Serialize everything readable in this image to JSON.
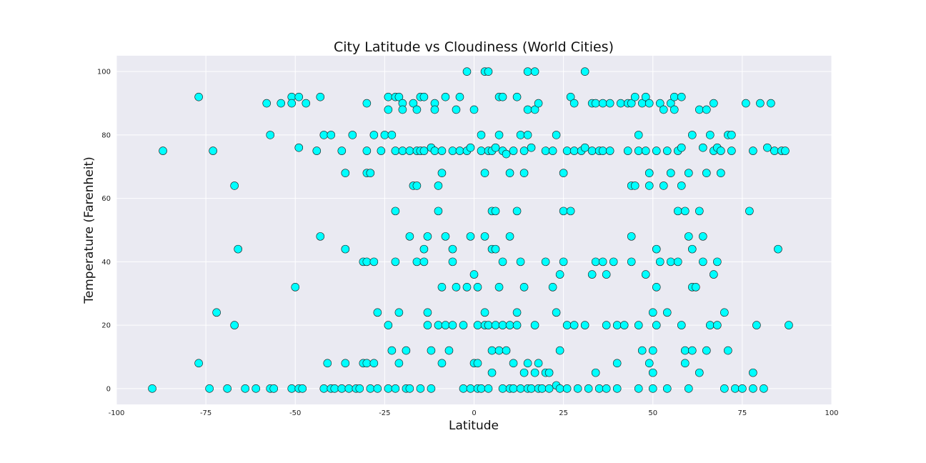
{
  "chart_data": {
    "type": "scatter",
    "title": "City Latitude vs Cloudiness (World Cities)",
    "xlabel": "Latitude",
    "ylabel": "Temperature (Farenheit)",
    "xlim": [
      -100,
      100
    ],
    "ylim": [
      -5,
      105
    ],
    "xticks": [
      -100,
      -75,
      -50,
      -25,
      0,
      25,
      50,
      75,
      100
    ],
    "yticks": [
      0,
      20,
      40,
      60,
      80,
      100
    ],
    "grid": true,
    "colors": {
      "background": "#eaeaf2",
      "grid": "#ffffff",
      "marker_fill": "#00ffff",
      "marker_edge": "#1a1a1a"
    },
    "points": [
      [
        -90,
        0
      ],
      [
        -87,
        75
      ],
      [
        -77,
        92
      ],
      [
        -77,
        8
      ],
      [
        -74,
        0
      ],
      [
        -73,
        75
      ],
      [
        -72,
        24
      ],
      [
        -69,
        0
      ],
      [
        -67,
        64
      ],
      [
        -67,
        20
      ],
      [
        -66,
        44
      ],
      [
        -64,
        0
      ],
      [
        -61,
        0
      ],
      [
        -58,
        90
      ],
      [
        -57,
        80
      ],
      [
        -57,
        0
      ],
      [
        -56,
        0
      ],
      [
        -54,
        90
      ],
      [
        -51,
        92
      ],
      [
        -51,
        90
      ],
      [
        -51,
        0
      ],
      [
        -50,
        32
      ],
      [
        -49,
        92
      ],
      [
        -49,
        76
      ],
      [
        -49,
        0
      ],
      [
        -48,
        0
      ],
      [
        -47,
        90
      ],
      [
        -44,
        75
      ],
      [
        -43,
        92
      ],
      [
        -43,
        48
      ],
      [
        -42,
        80
      ],
      [
        -42,
        0
      ],
      [
        -41,
        8
      ],
      [
        -40,
        80
      ],
      [
        -40,
        0
      ],
      [
        -39,
        0
      ],
      [
        -37,
        75
      ],
      [
        -37,
        0
      ],
      [
        -36,
        68
      ],
      [
        -36,
        44
      ],
      [
        -36,
        8
      ],
      [
        -35,
        0
      ],
      [
        -34,
        80
      ],
      [
        -33,
        0
      ],
      [
        -32,
        0
      ],
      [
        -31,
        40
      ],
      [
        -31,
        8
      ],
      [
        -30,
        90
      ],
      [
        -30,
        75
      ],
      [
        -30,
        68
      ],
      [
        -30,
        40
      ],
      [
        -30,
        8
      ],
      [
        -29,
        0
      ],
      [
        -29,
        68
      ],
      [
        -28,
        80
      ],
      [
        -28,
        8
      ],
      [
        -28,
        40
      ],
      [
        -27,
        24
      ],
      [
        -27,
        0
      ],
      [
        -26,
        75
      ],
      [
        -25,
        80
      ],
      [
        -24,
        0
      ],
      [
        -24,
        20
      ],
      [
        -24,
        88
      ],
      [
        -24,
        92
      ],
      [
        -23,
        80
      ],
      [
        -23,
        12
      ],
      [
        -22,
        92
      ],
      [
        -22,
        56
      ],
      [
        -22,
        75
      ],
      [
        -22,
        40
      ],
      [
        -22,
        0
      ],
      [
        -21,
        92
      ],
      [
        -21,
        24
      ],
      [
        -21,
        8
      ],
      [
        -20,
        90
      ],
      [
        -20,
        88
      ],
      [
        -20,
        75
      ],
      [
        -19,
        12
      ],
      [
        -19,
        0
      ],
      [
        -18,
        48
      ],
      [
        -18,
        0
      ],
      [
        -18,
        75
      ],
      [
        -17,
        90
      ],
      [
        -17,
        64
      ],
      [
        -16,
        75
      ],
      [
        -16,
        64
      ],
      [
        -16,
        40
      ],
      [
        -16,
        88
      ],
      [
        -15,
        92
      ],
      [
        -15,
        75
      ],
      [
        -15,
        0
      ],
      [
        -14,
        92
      ],
      [
        -14,
        44
      ],
      [
        -14,
        75
      ],
      [
        -14,
        40
      ],
      [
        -13,
        48
      ],
      [
        -13,
        24
      ],
      [
        -13,
        20
      ],
      [
        -12,
        76
      ],
      [
        -12,
        12
      ],
      [
        -12,
        0
      ],
      [
        -11,
        75
      ],
      [
        -11,
        90
      ],
      [
        -11,
        88
      ],
      [
        -10,
        56
      ],
      [
        -10,
        64
      ],
      [
        -10,
        20
      ],
      [
        -9,
        68
      ],
      [
        -9,
        8
      ],
      [
        -9,
        75
      ],
      [
        -9,
        32
      ],
      [
        -8,
        92
      ],
      [
        -8,
        48
      ],
      [
        -8,
        20
      ],
      [
        -7,
        12
      ],
      [
        -6,
        75
      ],
      [
        -6,
        40
      ],
      [
        -6,
        44
      ],
      [
        -6,
        20
      ],
      [
        -5,
        32
      ],
      [
        -5,
        88
      ],
      [
        -4,
        92
      ],
      [
        -4,
        75
      ],
      [
        -3,
        20
      ],
      [
        -3,
        0
      ],
      [
        -2,
        100
      ],
      [
        -2,
        75
      ],
      [
        -2,
        32
      ],
      [
        -1,
        76
      ],
      [
        -1,
        48
      ],
      [
        -1,
        0
      ],
      [
        0,
        36
      ],
      [
        0,
        8
      ],
      [
        0,
        88
      ],
      [
        1,
        20
      ],
      [
        1,
        0
      ],
      [
        1,
        8
      ],
      [
        1,
        32
      ],
      [
        2,
        80
      ],
      [
        2,
        75
      ],
      [
        2,
        0
      ],
      [
        3,
        100
      ],
      [
        3,
        48
      ],
      [
        3,
        20
      ],
      [
        3,
        68
      ],
      [
        3,
        24
      ],
      [
        4,
        0
      ],
      [
        4,
        75
      ],
      [
        4,
        100
      ],
      [
        4,
        20
      ],
      [
        5,
        56
      ],
      [
        5,
        75
      ],
      [
        5,
        44
      ],
      [
        5,
        12
      ],
      [
        5,
        5
      ],
      [
        6,
        76
      ],
      [
        6,
        56
      ],
      [
        6,
        44
      ],
      [
        6,
        20
      ],
      [
        7,
        92
      ],
      [
        7,
        80
      ],
      [
        7,
        32
      ],
      [
        7,
        12
      ],
      [
        8,
        75
      ],
      [
        8,
        40
      ],
      [
        8,
        20
      ],
      [
        8,
        0
      ],
      [
        8,
        92
      ],
      [
        9,
        12
      ],
      [
        9,
        74
      ],
      [
        10,
        48
      ],
      [
        10,
        0
      ],
      [
        10,
        20
      ],
      [
        10,
        68
      ],
      [
        11,
        75
      ],
      [
        11,
        8
      ],
      [
        11,
        0
      ],
      [
        12,
        24
      ],
      [
        12,
        92
      ],
      [
        12,
        56
      ],
      [
        12,
        20
      ],
      [
        13,
        80
      ],
      [
        13,
        40
      ],
      [
        13,
        0
      ],
      [
        14,
        75
      ],
      [
        14,
        68
      ],
      [
        14,
        32
      ],
      [
        14,
        5
      ],
      [
        15,
        100
      ],
      [
        15,
        88
      ],
      [
        15,
        80
      ],
      [
        15,
        8
      ],
      [
        15,
        0
      ],
      [
        16,
        76
      ],
      [
        16,
        0
      ],
      [
        17,
        100
      ],
      [
        17,
        88
      ],
      [
        17,
        5
      ],
      [
        17,
        20
      ],
      [
        18,
        90
      ],
      [
        18,
        8
      ],
      [
        18,
        0
      ],
      [
        19,
        0
      ],
      [
        20,
        75
      ],
      [
        20,
        40
      ],
      [
        20,
        5
      ],
      [
        21,
        5
      ],
      [
        21,
        0
      ],
      [
        22,
        32
      ],
      [
        22,
        75
      ],
      [
        23,
        80
      ],
      [
        23,
        24
      ],
      [
        23,
        1
      ],
      [
        24,
        36
      ],
      [
        24,
        12
      ],
      [
        24,
        0
      ],
      [
        25,
        68
      ],
      [
        25,
        56
      ],
      [
        25,
        40
      ],
      [
        26,
        75
      ],
      [
        26,
        20
      ],
      [
        26,
        0
      ],
      [
        27,
        56
      ],
      [
        27,
        92
      ],
      [
        28,
        90
      ],
      [
        28,
        75
      ],
      [
        28,
        20
      ],
      [
        29,
        0
      ],
      [
        30,
        75
      ],
      [
        31,
        76
      ],
      [
        31,
        100
      ],
      [
        31,
        20
      ],
      [
        32,
        0
      ],
      [
        33,
        75
      ],
      [
        33,
        90
      ],
      [
        33,
        36
      ],
      [
        34,
        90
      ],
      [
        34,
        40
      ],
      [
        34,
        5
      ],
      [
        35,
        75
      ],
      [
        35,
        0
      ],
      [
        36,
        40
      ],
      [
        36,
        75
      ],
      [
        36,
        90
      ],
      [
        37,
        20
      ],
      [
        37,
        36
      ],
      [
        37,
        0
      ],
      [
        38,
        75
      ],
      [
        38,
        90
      ],
      [
        39,
        40
      ],
      [
        40,
        20
      ],
      [
        40,
        8
      ],
      [
        40,
        0
      ],
      [
        41,
        90
      ],
      [
        42,
        20
      ],
      [
        43,
        90
      ],
      [
        43,
        75
      ],
      [
        44,
        48
      ],
      [
        44,
        64
      ],
      [
        44,
        40
      ],
      [
        44,
        90
      ],
      [
        45,
        92
      ],
      [
        45,
        64
      ],
      [
        46,
        80
      ],
      [
        46,
        75
      ],
      [
        46,
        20
      ],
      [
        46,
        0
      ],
      [
        47,
        12
      ],
      [
        47,
        90
      ],
      [
        48,
        75
      ],
      [
        48,
        36
      ],
      [
        48,
        92
      ],
      [
        49,
        68
      ],
      [
        49,
        64
      ],
      [
        49,
        8
      ],
      [
        49,
        90
      ],
      [
        50,
        24
      ],
      [
        50,
        12
      ],
      [
        50,
        5
      ],
      [
        50,
        0
      ],
      [
        51,
        75
      ],
      [
        51,
        44
      ],
      [
        51,
        32
      ],
      [
        51,
        20
      ],
      [
        52,
        40
      ],
      [
        52,
        90
      ],
      [
        53,
        64
      ],
      [
        53,
        88
      ],
      [
        54,
        75
      ],
      [
        54,
        24
      ],
      [
        54,
        0
      ],
      [
        55,
        90
      ],
      [
        55,
        68
      ],
      [
        55,
        40
      ],
      [
        56,
        92
      ],
      [
        56,
        88
      ],
      [
        57,
        75
      ],
      [
        57,
        56
      ],
      [
        57,
        40
      ],
      [
        58,
        92
      ],
      [
        58,
        76
      ],
      [
        58,
        64
      ],
      [
        58,
        20
      ],
      [
        59,
        12
      ],
      [
        59,
        8
      ],
      [
        59,
        56
      ],
      [
        60,
        68
      ],
      [
        60,
        48
      ],
      [
        60,
        0
      ],
      [
        61,
        80
      ],
      [
        61,
        44
      ],
      [
        61,
        32
      ],
      [
        61,
        12
      ],
      [
        62,
        32
      ],
      [
        63,
        88
      ],
      [
        63,
        56
      ],
      [
        63,
        5
      ],
      [
        64,
        76
      ],
      [
        64,
        48
      ],
      [
        64,
        40
      ],
      [
        65,
        68
      ],
      [
        65,
        88
      ],
      [
        65,
        12
      ],
      [
        66,
        80
      ],
      [
        66,
        20
      ],
      [
        67,
        75
      ],
      [
        67,
        36
      ],
      [
        67,
        90
      ],
      [
        68,
        76
      ],
      [
        68,
        40
      ],
      [
        68,
        20
      ],
      [
        69,
        75
      ],
      [
        69,
        68
      ],
      [
        70,
        24
      ],
      [
        70,
        0
      ],
      [
        71,
        80
      ],
      [
        71,
        12
      ],
      [
        72,
        75
      ],
      [
        72,
        80
      ],
      [
        73,
        0
      ],
      [
        75,
        0
      ],
      [
        76,
        90
      ],
      [
        77,
        56
      ],
      [
        78,
        75
      ],
      [
        78,
        5
      ],
      [
        78,
        0
      ],
      [
        79,
        20
      ],
      [
        80,
        90
      ],
      [
        81,
        0
      ],
      [
        82,
        76
      ],
      [
        83,
        90
      ],
      [
        84,
        75
      ],
      [
        85,
        44
      ],
      [
        86,
        75
      ],
      [
        87,
        75
      ],
      [
        88,
        20
      ]
    ]
  }
}
